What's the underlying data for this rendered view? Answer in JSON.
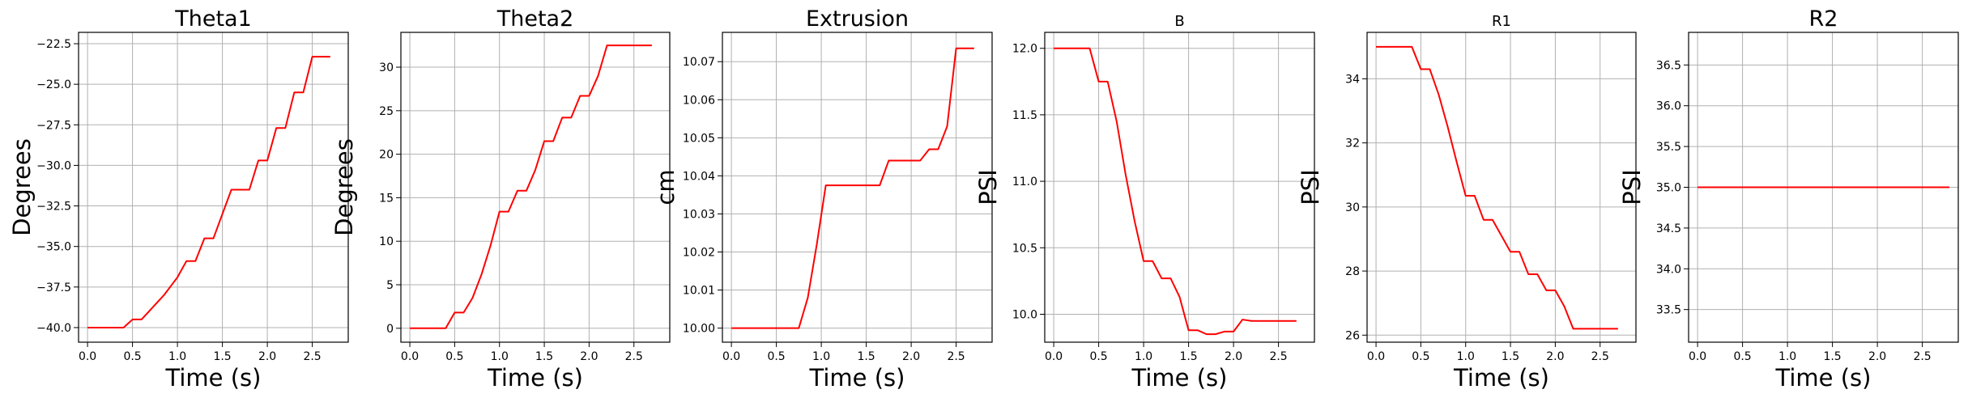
{
  "chart_data": [
    {
      "type": "line",
      "title": "Theta1",
      "xlabel": "Time (s)",
      "ylabel": "Degrees",
      "xlim": [
        -0.1,
        2.9
      ],
      "ylim": [
        -40.9,
        -21.8
      ],
      "xticks": [
        0.0,
        0.5,
        1.0,
        1.5,
        2.0,
        2.5
      ],
      "xtick_labels": [
        "0.0",
        "0.5",
        "1.0",
        "1.5",
        "2.0",
        "2.5"
      ],
      "yticks": [
        -40.0,
        -37.5,
        -35.0,
        -32.5,
        -30.0,
        -27.5,
        -25.0,
        -22.5
      ],
      "ytick_labels": [
        "−40.0",
        "−37.5",
        "−35.0",
        "−32.5",
        "−30.0",
        "−27.5",
        "−25.0",
        "−22.5"
      ],
      "grid": true,
      "color": "#ff0000",
      "series": [
        {
          "x": [
            0.0,
            0.4,
            0.5,
            0.6,
            0.7,
            0.85,
            1.0,
            1.1,
            1.2,
            1.3,
            1.4,
            1.5,
            1.6,
            1.8,
            1.9,
            2.0,
            2.1,
            2.2,
            2.3,
            2.4,
            2.5,
            2.6,
            2.7
          ],
          "y": [
            -40.0,
            -40.0,
            -39.5,
            -39.5,
            -38.9,
            -38.0,
            -36.9,
            -35.9,
            -35.9,
            -34.5,
            -34.5,
            -33.0,
            -31.5,
            -31.5,
            -29.7,
            -29.7,
            -27.7,
            -27.7,
            -25.5,
            -25.5,
            -23.3,
            -23.3,
            -23.3
          ]
        }
      ]
    },
    {
      "type": "line",
      "title": "Theta2",
      "xlabel": "Time (s)",
      "ylabel": "Degrees",
      "xlim": [
        -0.1,
        2.9
      ],
      "ylim": [
        -1.6,
        34.0
      ],
      "xticks": [
        0.0,
        0.5,
        1.0,
        1.5,
        2.0,
        2.5
      ],
      "xtick_labels": [
        "0.0",
        "0.5",
        "1.0",
        "1.5",
        "2.0",
        "2.5"
      ],
      "yticks": [
        0,
        5,
        10,
        15,
        20,
        25,
        30
      ],
      "ytick_labels": [
        "0",
        "5",
        "10",
        "15",
        "20",
        "25",
        "30"
      ],
      "grid": true,
      "color": "#ff0000",
      "series": [
        {
          "x": [
            0.0,
            0.4,
            0.5,
            0.6,
            0.7,
            0.8,
            0.9,
            1.0,
            1.1,
            1.2,
            1.3,
            1.4,
            1.5,
            1.6,
            1.7,
            1.8,
            1.9,
            2.0,
            2.1,
            2.2,
            2.3,
            2.4,
            2.5,
            2.6,
            2.7
          ],
          "y": [
            0.0,
            0.0,
            1.8,
            1.8,
            3.5,
            6.2,
            9.5,
            13.4,
            13.4,
            15.8,
            15.8,
            18.2,
            21.5,
            21.5,
            24.2,
            24.2,
            26.7,
            26.7,
            29.0,
            32.5,
            32.5,
            32.5,
            32.5,
            32.5,
            32.5
          ]
        }
      ]
    },
    {
      "type": "line",
      "title": "Extrusion",
      "xlabel": "Time (s)",
      "ylabel": "cm",
      "xlim": [
        -0.1,
        2.9
      ],
      "ylim": [
        9.9963,
        10.0777
      ],
      "xticks": [
        0.0,
        0.5,
        1.0,
        1.5,
        2.0,
        2.5
      ],
      "xtick_labels": [
        "0.0",
        "0.5",
        "1.0",
        "1.5",
        "2.0",
        "2.5"
      ],
      "yticks": [
        10.0,
        10.01,
        10.02,
        10.03,
        10.04,
        10.05,
        10.06,
        10.07
      ],
      "ytick_labels": [
        "10.00",
        "10.01",
        "10.02",
        "10.03",
        "10.04",
        "10.05",
        "10.06",
        "10.07"
      ],
      "grid": true,
      "color": "#ff0000",
      "series": [
        {
          "x": [
            0.0,
            0.75,
            0.85,
            0.95,
            1.05,
            1.15,
            1.3,
            1.4,
            1.55,
            1.65,
            1.75,
            1.9,
            2.0,
            2.1,
            2.2,
            2.3,
            2.4,
            2.5,
            2.6,
            2.7
          ],
          "y": [
            10.0,
            10.0,
            10.008,
            10.022,
            10.0375,
            10.0375,
            10.0375,
            10.0375,
            10.0375,
            10.0375,
            10.044,
            10.044,
            10.044,
            10.044,
            10.047,
            10.047,
            10.053,
            10.0735,
            10.0735,
            10.0735
          ]
        }
      ]
    },
    {
      "type": "line",
      "title": "B",
      "xlabel": "Time (s)",
      "ylabel": "PSI",
      "xlim": [
        -0.1,
        2.9
      ],
      "ylim": [
        9.79,
        12.12
      ],
      "xticks": [
        0.0,
        0.5,
        1.0,
        1.5,
        2.0,
        2.5
      ],
      "xtick_labels": [
        "0.0",
        "0.5",
        "1.0",
        "1.5",
        "2.0",
        "2.5"
      ],
      "yticks": [
        10.0,
        10.5,
        11.0,
        11.5,
        12.0
      ],
      "ytick_labels": [
        "10.0",
        "10.5",
        "11.0",
        "11.5",
        "12.0"
      ],
      "grid": true,
      "color": "#ff0000",
      "series": [
        {
          "x": [
            0.0,
            0.4,
            0.5,
            0.6,
            0.7,
            0.8,
            0.9,
            1.0,
            1.1,
            1.2,
            1.3,
            1.4,
            1.5,
            1.6,
            1.7,
            1.8,
            1.9,
            2.0,
            2.1,
            2.2,
            2.3,
            2.4,
            2.5,
            2.6,
            2.7
          ],
          "y": [
            12.0,
            12.0,
            11.75,
            11.75,
            11.45,
            11.05,
            10.7,
            10.4,
            10.4,
            10.27,
            10.27,
            10.13,
            9.88,
            9.88,
            9.85,
            9.85,
            9.87,
            9.87,
            9.96,
            9.95,
            9.95,
            9.95,
            9.95,
            9.95,
            9.95
          ]
        }
      ]
    },
    {
      "type": "line",
      "title": "R1",
      "xlabel": "Time (s)",
      "ylabel": "PSI",
      "xlim": [
        -0.1,
        2.9
      ],
      "ylim": [
        25.78,
        35.45
      ],
      "xticks": [
        0.0,
        0.5,
        1.0,
        1.5,
        2.0,
        2.5
      ],
      "xtick_labels": [
        "0.0",
        "0.5",
        "1.0",
        "1.5",
        "2.0",
        "2.5"
      ],
      "yticks": [
        26,
        28,
        30,
        32,
        34
      ],
      "ytick_labels": [
        "26",
        "28",
        "30",
        "32",
        "34"
      ],
      "grid": true,
      "color": "#ff0000",
      "series": [
        {
          "x": [
            0.0,
            0.4,
            0.5,
            0.6,
            0.7,
            0.8,
            0.9,
            1.0,
            1.1,
            1.2,
            1.3,
            1.4,
            1.5,
            1.6,
            1.7,
            1.8,
            1.9,
            2.0,
            2.1,
            2.2,
            2.3,
            2.4,
            2.5,
            2.6,
            2.7
          ],
          "y": [
            35.0,
            35.0,
            34.3,
            34.3,
            33.5,
            32.5,
            31.4,
            30.35,
            30.35,
            29.6,
            29.6,
            29.1,
            28.6,
            28.6,
            27.9,
            27.9,
            27.4,
            27.4,
            26.9,
            26.2,
            26.2,
            26.2,
            26.2,
            26.2,
            26.2
          ]
        }
      ]
    },
    {
      "type": "line",
      "title": "R2",
      "xlabel": "Time (s)",
      "ylabel": "PSI",
      "xlim": [
        -0.1,
        2.9
      ],
      "ylim": [
        33.1,
        36.9
      ],
      "xticks": [
        0.0,
        0.5,
        1.0,
        1.5,
        2.0,
        2.5
      ],
      "xtick_labels": [
        "0.0",
        "0.5",
        "1.0",
        "1.5",
        "2.0",
        "2.5"
      ],
      "yticks": [
        33.5,
        34.0,
        34.5,
        35.0,
        35.5,
        36.0,
        36.5
      ],
      "ytick_labels": [
        "33.5",
        "34.0",
        "34.5",
        "35.0",
        "35.5",
        "36.0",
        "36.5"
      ],
      "grid": true,
      "color": "#ff0000",
      "series": [
        {
          "x": [
            0.0,
            2.8
          ],
          "y": [
            35.0,
            35.0
          ]
        }
      ]
    }
  ]
}
